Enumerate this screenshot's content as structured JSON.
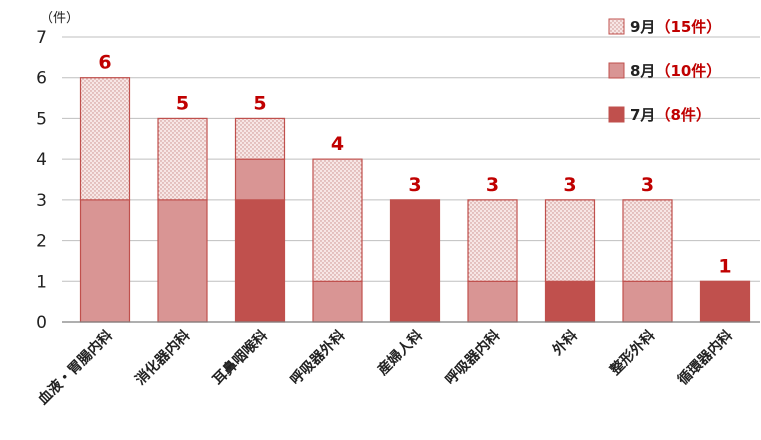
{
  "chart_data": {
    "type": "bar",
    "stacked": true,
    "unit_label": "（件）",
    "categories": [
      "血液・胃腸内科",
      "消化器内科",
      "耳鼻咽喉科",
      "呼吸器外科",
      "産婦人科",
      "呼吸器内科",
      "外科",
      "整形外科",
      "循環器内科"
    ],
    "series": [
      {
        "name": "7月",
        "count_label": "（8件）",
        "color": "#c0504d",
        "pattern": "solid",
        "values": [
          0,
          0,
          3,
          0,
          3,
          0,
          1,
          0,
          1
        ]
      },
      {
        "name": "8月",
        "count_label": "（10件）",
        "color": "#d99594",
        "pattern": "solid",
        "values": [
          3,
          3,
          1,
          1,
          0,
          1,
          0,
          1,
          0
        ]
      },
      {
        "name": "9月",
        "count_label": "（15件）",
        "color": "#f2dcdb",
        "pattern": "dotted",
        "values": [
          3,
          2,
          1,
          3,
          0,
          2,
          2,
          2,
          0
        ]
      }
    ],
    "totals": [
      6,
      5,
      5,
      4,
      3,
      3,
      3,
      3,
      1
    ],
    "ylim": [
      0,
      7
    ],
    "yticks": [
      0,
      1,
      2,
      3,
      4,
      5,
      6,
      7
    ],
    "grid": true,
    "legend_position": "top-right",
    "xlabel": "",
    "ylabel": ""
  }
}
